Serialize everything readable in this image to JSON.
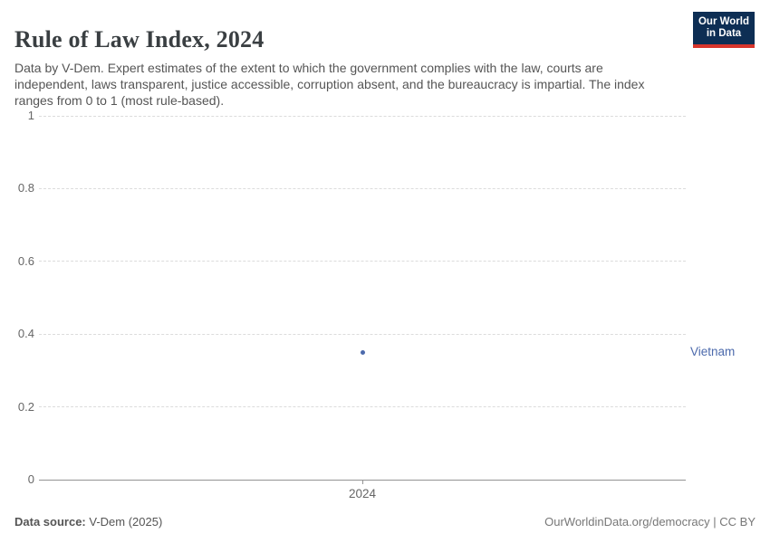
{
  "header": {
    "title": "Rule of Law Index, 2024",
    "subtitle": "Data by V-Dem. Expert estimates of the extent to which the government complies with the law, courts are independent, laws transparent, justice accessible, corruption absent, and the bureaucracy is impartial. The index ranges from 0 to 1 (most rule-based).",
    "logo": {
      "line1": "Our World",
      "line2": "in Data"
    }
  },
  "chart_data": {
    "type": "scatter",
    "title": "Rule of Law Index, 2024",
    "x": [
      2024
    ],
    "series": [
      {
        "name": "Vietnam",
        "values": [
          0.35
        ],
        "color": "#4c6aac"
      }
    ],
    "xlabel": "",
    "ylabel": "",
    "ylim": [
      0,
      1
    ],
    "yticks": [
      {
        "value": 0,
        "label": "0"
      },
      {
        "value": 0.2,
        "label": "0.2"
      },
      {
        "value": 0.4,
        "label": "0.4"
      },
      {
        "value": 0.6,
        "label": "0.6"
      },
      {
        "value": 0.8,
        "label": "0.8"
      },
      {
        "value": 1,
        "label": "1"
      }
    ],
    "xticks": [
      {
        "value": 2024,
        "label": "2024"
      }
    ],
    "grid": "horizontal-dashed",
    "legend_position": "entity-label-right-of-plot"
  },
  "footer": {
    "source_label": "Data source:",
    "source_value": " V-Dem (2025)",
    "right_text": "OurWorldinData.org/democracy | CC BY"
  },
  "colors": {
    "title": "#3a3f42",
    "subtitle": "#555555",
    "tick": "#666666",
    "grid": "#dcdcdc",
    "axis": "#949494",
    "footer_left": "#555555",
    "footer_right": "#777777",
    "logo_bg": "#0d2e54",
    "logo_red": "#d7352c"
  }
}
